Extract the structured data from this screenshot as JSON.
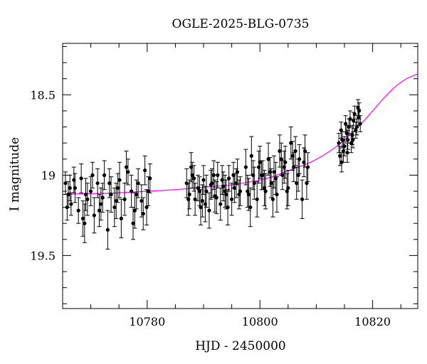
{
  "chart_data": {
    "type": "scatter",
    "title": "OGLE-2025-BLG-0735",
    "xlabel": "HJD - 2450000",
    "ylabel": "I magnitude",
    "xlim": [
      10765,
      10828
    ],
    "ylim": [
      19.83,
      18.18
    ],
    "y_inverted": true,
    "grid": false,
    "x_ticks": [
      10780,
      10800,
      10820
    ],
    "y_ticks": [
      18.5,
      19,
      19.5
    ],
    "model_color": "#ff00ff",
    "point_color": "#000000",
    "model_curve": {
      "x": [
        10765,
        10770,
        10775,
        10780,
        10785,
        10790,
        10795,
        10800,
        10803,
        10806,
        10809,
        10812,
        10814,
        10816,
        10818,
        10820,
        10822,
        10824,
        10826,
        10828
      ],
      "y": [
        19.12,
        19.115,
        19.11,
        19.1,
        19.09,
        19.075,
        19.06,
        19.03,
        19.0,
        18.96,
        18.92,
        18.86,
        18.81,
        18.75,
        18.68,
        18.6,
        18.52,
        18.45,
        18.4,
        18.37
      ]
    },
    "series": [
      {
        "x": [
          10765.5,
          10766.0,
          10766.5,
          10767.2,
          10767.8,
          10768.3,
          10768.9,
          10769.4,
          10770.0,
          10770.6,
          10771.2,
          10771.8,
          10772.4,
          10773.0,
          10773.6,
          10774.2,
          10774.8,
          10775.4,
          10776.0,
          10776.6,
          10777.2,
          10777.8,
          10778.4,
          10779.0,
          10779.6,
          10780.2,
          10765.8,
          10767.0,
          10768.6,
          10770.3,
          10771.5,
          10773.3,
          10774.5,
          10776.3,
          10778.1,
          10779.3,
          10780.5,
          10766.3,
          10769.1,
          10772.1,
          10775.1,
          10777.5,
          10779.9
        ],
        "y": [
          19.05,
          19.12,
          19.18,
          19.08,
          19.22,
          19.02,
          19.3,
          19.15,
          19.1,
          19.25,
          19.05,
          19.18,
          19.0,
          19.34,
          19.12,
          19.2,
          19.08,
          19.27,
          19.15,
          18.98,
          19.1,
          19.22,
          19.05,
          19.16,
          18.97,
          19.1,
          19.2,
          19.03,
          19.27,
          19.0,
          19.22,
          19.05,
          19.16,
          18.95,
          19.12,
          19.24,
          19.02,
          19.08,
          19.12,
          19.14,
          19.03,
          19.3,
          19.2
        ],
        "err": [
          0.07,
          0.08,
          0.07,
          0.09,
          0.08,
          0.09,
          0.12,
          0.1,
          0.09,
          0.11,
          0.09,
          0.1,
          0.09,
          0.12,
          0.11,
          0.12,
          0.09,
          0.12,
          0.1,
          0.08,
          0.1,
          0.11,
          0.09,
          0.1,
          0.09,
          0.09,
          0.08,
          0.08,
          0.11,
          0.08,
          0.1,
          0.09,
          0.11,
          0.1,
          0.09,
          0.1,
          0.09,
          0.08,
          0.1,
          0.09,
          0.11,
          0.1,
          0.11
        ]
      },
      {
        "x": [
          10787.0,
          10787.5,
          10788.0,
          10788.5,
          10789.0,
          10789.5,
          10790.0,
          10790.5,
          10791.0,
          10791.5,
          10792.0,
          10792.5,
          10793.0,
          10793.5,
          10794.0,
          10794.5,
          10795.0,
          10795.5,
          10796.0,
          10796.5,
          10787.3,
          10788.3,
          10789.3,
          10790.3,
          10791.3,
          10792.3,
          10793.3,
          10794.3,
          10795.3,
          10796.3,
          10787.8,
          10789.8,
          10791.8,
          10793.8,
          10795.8
        ],
        "y": [
          19.05,
          19.12,
          19.0,
          19.15,
          19.08,
          19.2,
          19.03,
          19.1,
          19.22,
          19.05,
          19.13,
          19.0,
          19.18,
          19.07,
          19.12,
          19.02,
          19.15,
          19.08,
          18.98,
          19.1,
          19.15,
          19.02,
          19.1,
          19.18,
          19.06,
          19.14,
          19.03,
          19.2,
          19.0,
          19.12,
          18.95,
          19.16,
          19.0,
          19.1,
          19.05
        ],
        "err": [
          0.09,
          0.09,
          0.08,
          0.1,
          0.08,
          0.11,
          0.09,
          0.1,
          0.11,
          0.09,
          0.1,
          0.08,
          0.1,
          0.09,
          0.09,
          0.08,
          0.1,
          0.09,
          0.08,
          0.09,
          0.1,
          0.08,
          0.09,
          0.11,
          0.09,
          0.1,
          0.09,
          0.11,
          0.08,
          0.09,
          0.09,
          0.1,
          0.09,
          0.1,
          0.09
        ]
      },
      {
        "x": [
          10797.5,
          10798.0,
          10798.5,
          10799.0,
          10799.5,
          10800.0,
          10800.5,
          10801.0,
          10801.5,
          10802.0,
          10802.5,
          10803.0,
          10803.5,
          10804.0,
          10804.5,
          10805.0,
          10805.5,
          10806.0,
          10806.5,
          10807.0,
          10807.5,
          10808.0,
          10808.5,
          10797.8,
          10798.8,
          10799.8,
          10800.8,
          10801.8,
          10802.8,
          10803.8,
          10804.8,
          10805.8,
          10806.8,
          10807.8,
          10798.3,
          10800.3,
          10802.3,
          10804.3,
          10806.3,
          10808.3
        ],
        "y": [
          18.95,
          19.12,
          18.88,
          19.05,
          19.15,
          18.92,
          19.0,
          19.1,
          18.9,
          19.05,
          18.98,
          19.12,
          18.85,
          19.0,
          18.92,
          19.08,
          18.8,
          18.95,
          19.05,
          18.9,
          19.15,
          18.85,
          18.95,
          19.1,
          19.0,
          18.95,
          19.08,
          18.98,
          19.02,
          18.9,
          19.1,
          18.88,
          19.0,
          18.92,
          19.2,
          19.0,
          19.15,
          18.95,
          18.85,
          19.05
        ],
        "err": [
          0.11,
          0.1,
          0.12,
          0.1,
          0.11,
          0.1,
          0.09,
          0.11,
          0.1,
          0.09,
          0.1,
          0.11,
          0.1,
          0.09,
          0.1,
          0.11,
          0.1,
          0.09,
          0.1,
          0.09,
          0.12,
          0.1,
          0.09,
          0.1,
          0.09,
          0.1,
          0.11,
          0.09,
          0.1,
          0.1,
          0.11,
          0.09,
          0.1,
          0.09,
          0.12,
          0.09,
          0.11,
          0.1,
          0.09,
          0.1
        ]
      },
      {
        "x": [
          10814.0,
          10814.4,
          10814.8,
          10815.2,
          10815.6,
          10816.0,
          10816.4,
          10816.8,
          10817.2,
          10817.6,
          10814.2,
          10814.6,
          10815.0,
          10815.4,
          10815.8,
          10816.2,
          10816.6,
          10817.0,
          10817.4,
          10817.8,
          10814.5,
          10815.5,
          10816.5,
          10817.5
        ],
        "y": [
          18.8,
          18.72,
          18.85,
          18.68,
          18.78,
          18.65,
          18.75,
          18.62,
          18.7,
          18.6,
          18.88,
          18.78,
          18.82,
          18.74,
          18.7,
          18.8,
          18.66,
          18.72,
          18.58,
          18.68,
          18.92,
          18.86,
          18.78,
          18.64
        ],
        "err": [
          0.06,
          0.05,
          0.07,
          0.05,
          0.06,
          0.05,
          0.06,
          0.05,
          0.05,
          0.05,
          0.06,
          0.05,
          0.06,
          0.05,
          0.05,
          0.06,
          0.05,
          0.05,
          0.05,
          0.05,
          0.06,
          0.06,
          0.05,
          0.05
        ]
      }
    ]
  }
}
